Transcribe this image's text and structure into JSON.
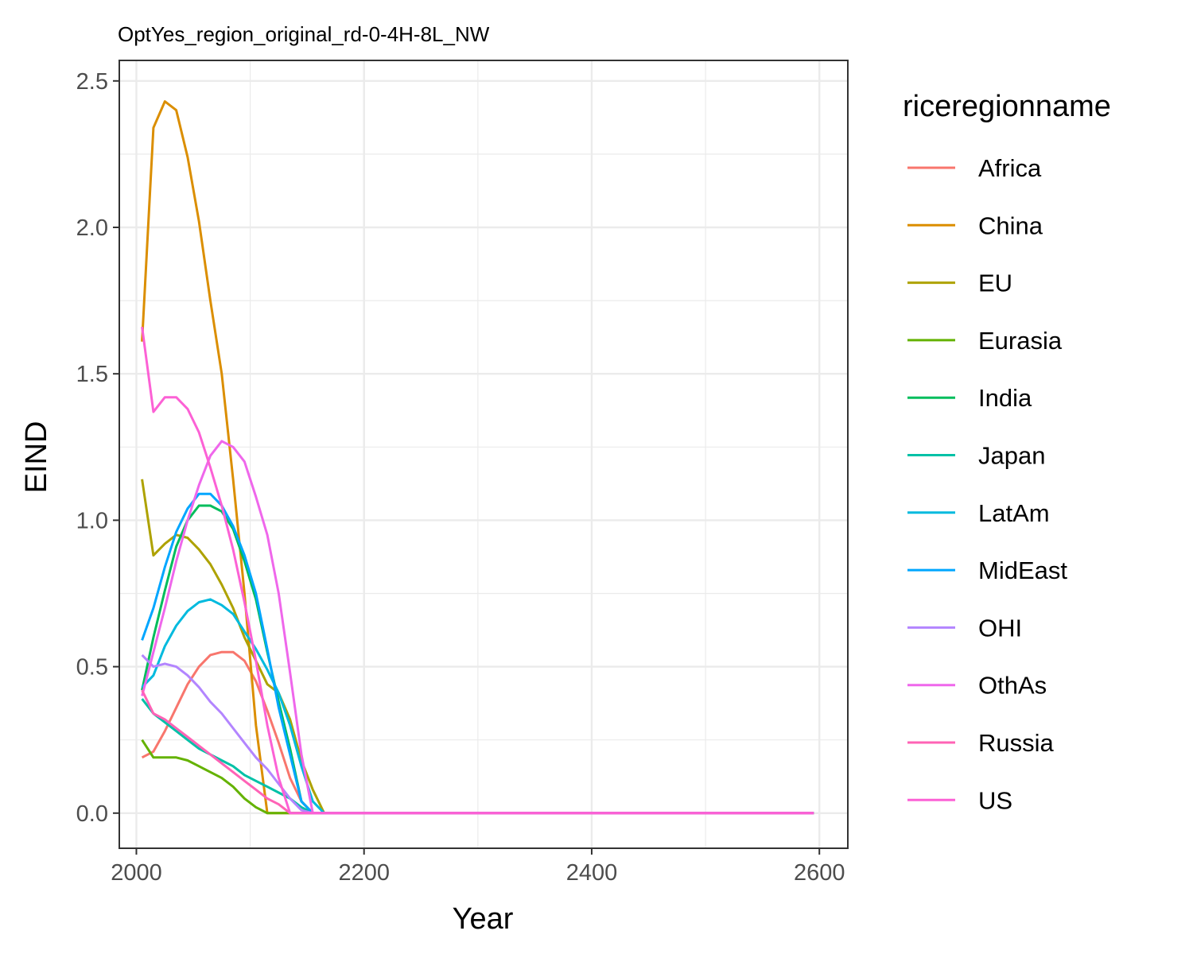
{
  "chart_data": {
    "type": "line",
    "title": "OptYes_region_original_rd-0-4H-8L_NW",
    "xlabel": "Year",
    "ylabel": "EIND",
    "xlim": [
      1985,
      2625
    ],
    "ylim": [
      -0.12,
      2.57
    ],
    "x_ticks": [
      2000,
      2200,
      2400,
      2600
    ],
    "y_ticks": [
      0.0,
      0.5,
      1.0,
      1.5,
      2.0,
      2.5
    ],
    "x_tick_labels": [
      "2000",
      "2200",
      "2400",
      "2600"
    ],
    "y_tick_labels": [
      "0.0",
      "0.5",
      "1.0",
      "1.5",
      "2.0",
      "2.5"
    ],
    "grid": true,
    "legend_title": "riceregionname",
    "legend_position": "right",
    "series": [
      {
        "name": "Africa",
        "color": "#F8766D",
        "x": [
          2005,
          2015,
          2025,
          2035,
          2045,
          2055,
          2065,
          2075,
          2085,
          2095,
          2105,
          2115,
          2125,
          2135,
          2145,
          2155,
          2165,
          2595
        ],
        "y": [
          0.19,
          0.21,
          0.28,
          0.36,
          0.44,
          0.5,
          0.54,
          0.55,
          0.55,
          0.52,
          0.45,
          0.35,
          0.24,
          0.12,
          0.04,
          0.0,
          0.0,
          0.0
        ]
      },
      {
        "name": "China",
        "color": "#DB8E00",
        "x": [
          2005,
          2015,
          2025,
          2035,
          2045,
          2055,
          2065,
          2075,
          2085,
          2095,
          2105,
          2115,
          2125,
          2595
        ],
        "y": [
          1.61,
          2.34,
          2.43,
          2.4,
          2.24,
          2.02,
          1.75,
          1.5,
          1.14,
          0.75,
          0.3,
          0.0,
          0.0,
          0.0
        ]
      },
      {
        "name": "EU",
        "color": "#AEA200",
        "x": [
          2005,
          2015,
          2025,
          2035,
          2045,
          2055,
          2065,
          2075,
          2085,
          2095,
          2105,
          2115,
          2125,
          2135,
          2145,
          2155,
          2165,
          2595
        ],
        "y": [
          1.14,
          0.88,
          0.92,
          0.95,
          0.94,
          0.9,
          0.85,
          0.78,
          0.7,
          0.6,
          0.52,
          0.44,
          0.41,
          0.32,
          0.18,
          0.08,
          0.0,
          0.0
        ]
      },
      {
        "name": "Eurasia",
        "color": "#64B200",
        "x": [
          2005,
          2015,
          2025,
          2035,
          2045,
          2055,
          2065,
          2075,
          2085,
          2095,
          2105,
          2115,
          2125,
          2135,
          2145,
          2155,
          2165,
          2595
        ],
        "y": [
          0.25,
          0.19,
          0.19,
          0.19,
          0.18,
          0.16,
          0.14,
          0.12,
          0.09,
          0.05,
          0.02,
          0.0,
          0.0,
          0.0,
          0.0,
          0.0,
          0.0,
          0.0
        ]
      },
      {
        "name": "India",
        "color": "#00BD5C",
        "x": [
          2005,
          2015,
          2025,
          2035,
          2045,
          2055,
          2065,
          2075,
          2085,
          2095,
          2105,
          2115,
          2125,
          2135,
          2145,
          2155,
          2595
        ],
        "y": [
          0.42,
          0.6,
          0.76,
          0.91,
          1.0,
          1.05,
          1.05,
          1.03,
          0.97,
          0.86,
          0.73,
          0.55,
          0.38,
          0.22,
          0.04,
          0.0,
          0.0
        ]
      },
      {
        "name": "Japan",
        "color": "#00C1A7",
        "x": [
          2005,
          2015,
          2025,
          2035,
          2045,
          2055,
          2065,
          2075,
          2085,
          2095,
          2105,
          2115,
          2125,
          2135,
          2145,
          2155,
          2165,
          2595
        ],
        "y": [
          0.39,
          0.34,
          0.31,
          0.28,
          0.25,
          0.22,
          0.2,
          0.18,
          0.16,
          0.13,
          0.11,
          0.09,
          0.07,
          0.05,
          0.02,
          0.0,
          0.0,
          0.0
        ]
      },
      {
        "name": "LatAm",
        "color": "#00BADE",
        "x": [
          2005,
          2015,
          2025,
          2035,
          2045,
          2055,
          2065,
          2075,
          2085,
          2095,
          2105,
          2115,
          2125,
          2135,
          2145,
          2155,
          2165,
          2595
        ],
        "y": [
          0.43,
          0.47,
          0.57,
          0.64,
          0.69,
          0.72,
          0.73,
          0.71,
          0.68,
          0.62,
          0.56,
          0.49,
          0.41,
          0.3,
          0.16,
          0.04,
          0.0,
          0.0
        ]
      },
      {
        "name": "MidEast",
        "color": "#00A6FF",
        "x": [
          2005,
          2015,
          2025,
          2035,
          2045,
          2055,
          2065,
          2075,
          2085,
          2095,
          2105,
          2115,
          2125,
          2135,
          2145,
          2155,
          2595
        ],
        "y": [
          0.59,
          0.7,
          0.84,
          0.96,
          1.04,
          1.09,
          1.09,
          1.05,
          0.98,
          0.88,
          0.75,
          0.56,
          0.36,
          0.2,
          0.04,
          0.0,
          0.0
        ]
      },
      {
        "name": "OHI",
        "color": "#B385FF",
        "x": [
          2005,
          2015,
          2025,
          2035,
          2045,
          2055,
          2065,
          2075,
          2085,
          2095,
          2105,
          2115,
          2125,
          2135,
          2145,
          2155,
          2595
        ],
        "y": [
          0.54,
          0.5,
          0.51,
          0.5,
          0.47,
          0.43,
          0.38,
          0.34,
          0.29,
          0.24,
          0.19,
          0.15,
          0.1,
          0.05,
          0.01,
          0.0,
          0.0
        ]
      },
      {
        "name": "OthAs",
        "color": "#EF67EB",
        "x": [
          2005,
          2015,
          2025,
          2035,
          2045,
          2055,
          2065,
          2075,
          2085,
          2095,
          2105,
          2115,
          2125,
          2135,
          2145,
          2155,
          2595
        ],
        "y": [
          0.4,
          0.55,
          0.7,
          0.86,
          1.0,
          1.12,
          1.22,
          1.27,
          1.25,
          1.2,
          1.08,
          0.95,
          0.75,
          0.48,
          0.2,
          0.0,
          0.0
        ]
      },
      {
        "name": "Russia",
        "color": "#FF63B6",
        "x": [
          2005,
          2015,
          2025,
          2035,
          2045,
          2055,
          2065,
          2075,
          2085,
          2095,
          2105,
          2115,
          2125,
          2135,
          2145,
          2155,
          2165,
          2595
        ],
        "y": [
          0.42,
          0.34,
          0.32,
          0.29,
          0.26,
          0.23,
          0.2,
          0.17,
          0.14,
          0.11,
          0.08,
          0.05,
          0.03,
          0.0,
          0.0,
          0.0,
          0.0,
          0.0
        ]
      },
      {
        "name": "US",
        "color": "#FC61D5",
        "x": [
          2005,
          2015,
          2025,
          2035,
          2045,
          2055,
          2065,
          2075,
          2085,
          2095,
          2105,
          2115,
          2125,
          2135,
          2145,
          2155,
          2595
        ],
        "y": [
          1.66,
          1.37,
          1.42,
          1.42,
          1.38,
          1.3,
          1.18,
          1.05,
          0.9,
          0.72,
          0.52,
          0.3,
          0.12,
          0.0,
          0.0,
          0.0,
          0.0
        ]
      }
    ]
  }
}
